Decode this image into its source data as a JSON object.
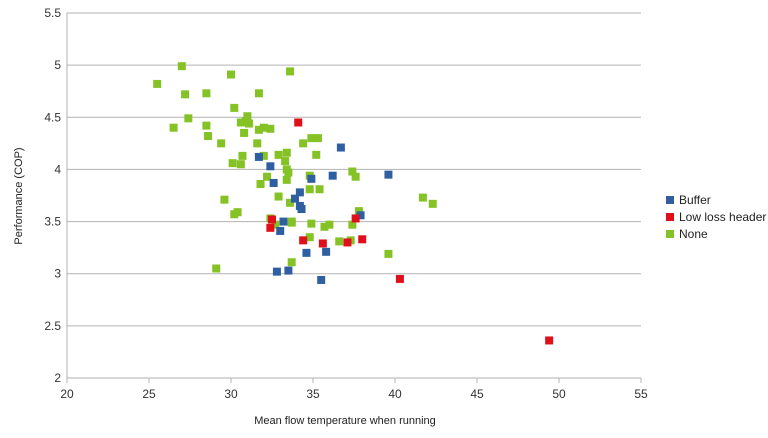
{
  "chart_data": {
    "type": "scatter",
    "title": "",
    "xlabel": "Mean flow temperature when running",
    "ylabel": "Performance (COP)",
    "xlim": [
      20,
      55
    ],
    "ylim": [
      2,
      5.5
    ],
    "xticks": [
      "20",
      "25",
      "30",
      "35",
      "40",
      "45",
      "50",
      "55"
    ],
    "yticks": [
      "2",
      "2.5",
      "3",
      "3.5",
      "4",
      "4.5",
      "5",
      "5.5"
    ],
    "grid": "horizontal",
    "legend_position": "right",
    "series": [
      {
        "name": "Buffer",
        "color": "#2f5fa0",
        "points": [
          [
            31.7,
            4.12
          ],
          [
            32.4,
            4.03
          ],
          [
            32.6,
            3.87
          ],
          [
            33.2,
            3.5
          ],
          [
            33.0,
            3.41
          ],
          [
            32.8,
            3.02
          ],
          [
            33.5,
            3.03
          ],
          [
            33.9,
            3.72
          ],
          [
            34.2,
            3.78
          ],
          [
            34.2,
            3.65
          ],
          [
            34.3,
            3.62
          ],
          [
            34.9,
            3.91
          ],
          [
            36.2,
            3.94
          ],
          [
            36.7,
            4.21
          ],
          [
            39.6,
            3.95
          ],
          [
            37.9,
            3.56
          ],
          [
            35.5,
            2.94
          ],
          [
            35.8,
            3.21
          ],
          [
            34.6,
            3.2
          ]
        ]
      },
      {
        "name": "Low loss header",
        "color": "#e0101a",
        "points": [
          [
            34.1,
            4.45
          ],
          [
            32.5,
            3.52
          ],
          [
            32.4,
            3.44
          ],
          [
            34.4,
            3.32
          ],
          [
            35.6,
            3.29
          ],
          [
            37.1,
            3.3
          ],
          [
            38.0,
            3.33
          ],
          [
            37.6,
            3.53
          ],
          [
            40.3,
            2.95
          ],
          [
            49.4,
            2.36
          ]
        ]
      },
      {
        "name": "None",
        "color": "#84c225",
        "points": [
          [
            25.5,
            4.82
          ],
          [
            27.0,
            4.99
          ],
          [
            27.2,
            4.72
          ],
          [
            26.5,
            4.4
          ],
          [
            27.4,
            4.49
          ],
          [
            28.5,
            4.73
          ],
          [
            28.5,
            4.42
          ],
          [
            28.6,
            4.32
          ],
          [
            29.4,
            4.25
          ],
          [
            30.0,
            4.91
          ],
          [
            30.2,
            4.59
          ],
          [
            30.6,
            4.45
          ],
          [
            30.9,
            4.46
          ],
          [
            31.0,
            4.51
          ],
          [
            31.1,
            4.44
          ],
          [
            30.8,
            4.35
          ],
          [
            31.7,
            4.73
          ],
          [
            31.6,
            4.25
          ],
          [
            32.0,
            4.4
          ],
          [
            32.4,
            4.39
          ],
          [
            32.0,
            4.13
          ],
          [
            32.9,
            4.14
          ],
          [
            33.6,
            4.94
          ],
          [
            33.4,
            4.16
          ],
          [
            33.3,
            4.08
          ],
          [
            33.4,
            4.0
          ],
          [
            33.5,
            3.97
          ],
          [
            33.4,
            3.9
          ],
          [
            34.4,
            4.25
          ],
          [
            34.9,
            4.3
          ],
          [
            35.3,
            4.3
          ],
          [
            35.2,
            4.14
          ],
          [
            30.1,
            4.06
          ],
          [
            30.7,
            4.13
          ],
          [
            30.6,
            4.05
          ],
          [
            31.7,
            4.38
          ],
          [
            29.6,
            3.71
          ],
          [
            30.4,
            3.59
          ],
          [
            30.2,
            3.57
          ],
          [
            31.8,
            3.86
          ],
          [
            32.2,
            3.93
          ],
          [
            32.9,
            3.74
          ],
          [
            33.6,
            3.68
          ],
          [
            33.7,
            3.5
          ],
          [
            33.7,
            3.49
          ],
          [
            32.4,
            3.53
          ],
          [
            32.7,
            3.47
          ],
          [
            34.8,
            3.94
          ],
          [
            34.8,
            3.81
          ],
          [
            35.4,
            3.81
          ],
          [
            34.9,
            3.48
          ],
          [
            35.7,
            3.45
          ],
          [
            36.0,
            3.47
          ],
          [
            37.4,
            3.98
          ],
          [
            37.6,
            3.93
          ],
          [
            37.8,
            3.6
          ],
          [
            37.4,
            3.47
          ],
          [
            36.6,
            3.31
          ],
          [
            37.3,
            3.32
          ],
          [
            34.8,
            3.35
          ],
          [
            33.7,
            3.11
          ],
          [
            29.1,
            3.05
          ],
          [
            39.6,
            3.19
          ],
          [
            41.7,
            3.73
          ],
          [
            42.3,
            3.67
          ]
        ]
      }
    ]
  }
}
